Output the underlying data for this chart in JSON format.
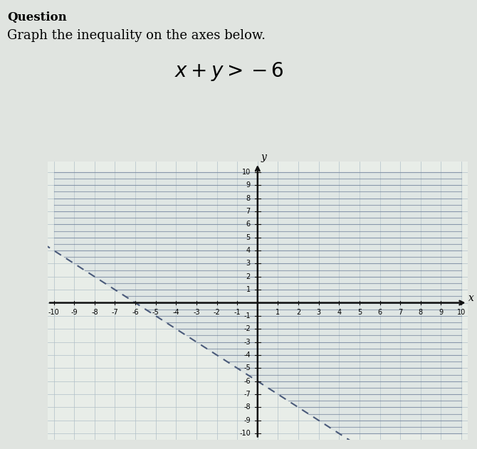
{
  "title_question": "Question",
  "title_instruction": "Graph the inequality on the axes below.",
  "inequality_tex": "$x + y > -6$",
  "xlim": [
    -10,
    10
  ],
  "ylim": [
    -10,
    10
  ],
  "xticks": [
    -10,
    -9,
    -8,
    -7,
    -6,
    -5,
    -4,
    -3,
    -2,
    -1,
    1,
    2,
    3,
    4,
    5,
    6,
    7,
    8,
    9,
    10
  ],
  "yticks": [
    -10,
    -9,
    -8,
    -7,
    -6,
    -5,
    -4,
    -3,
    -2,
    -1,
    1,
    2,
    3,
    4,
    5,
    6,
    7,
    8,
    9,
    10
  ],
  "boundary_color": "#4a5a7a",
  "hatch_color": "#5a6a8a",
  "background_color": "#dde5dd",
  "plot_bg_color": "#e8ede8",
  "grid_color_major": "#b0c0c8",
  "grid_color_minor": "#c8d4d8",
  "axis_color": "#111111",
  "page_bg": "#e0e4e0",
  "font_question": 12,
  "font_instruction": 13,
  "font_inequality": 20
}
